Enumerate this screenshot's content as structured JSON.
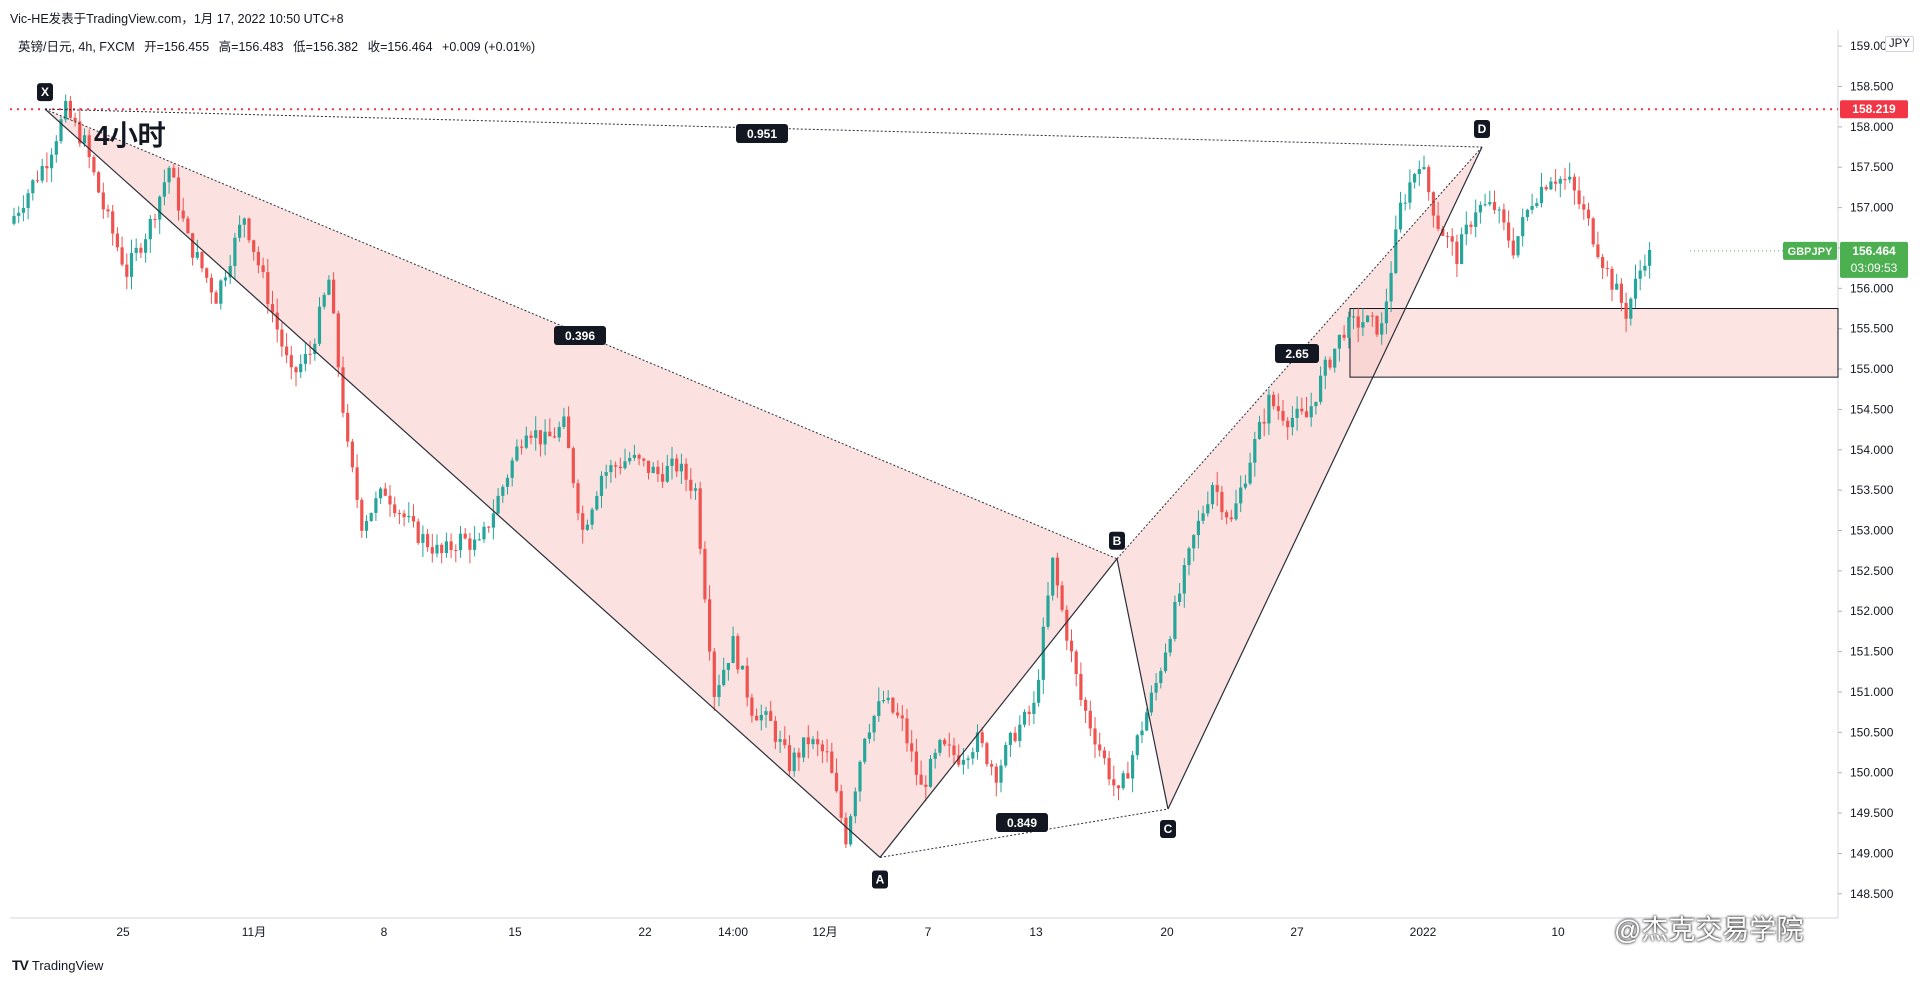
{
  "header": {
    "credit": "Vic-HE发表于TradingView.com，1月 17, 2022 10:50 UTC+8"
  },
  "legend": {
    "symbol": "英镑/日元, 4h, FXCM",
    "open": "开=156.455",
    "high": "高=156.483",
    "low": "低=156.382",
    "close": "收=156.464",
    "change": "+0.009 (+0.01%)"
  },
  "currency_label": "JPY",
  "timeframe_note": "4小时",
  "brand": "TradingView",
  "watermark_text": "@杰克交易学院",
  "colors": {
    "bull": "#26a69a",
    "bear": "#ef5350",
    "pattern_fill": "#f8c9c6",
    "resistance": "#f23645",
    "ticker_badge": "#4caf50"
  },
  "chart_data": {
    "type": "candlestick",
    "symbol": "GBPJPY",
    "ylim": [
      148.2,
      159.2
    ],
    "yticks": [
      "148.500",
      "149.000",
      "149.500",
      "150.000",
      "150.500",
      "151.000",
      "151.500",
      "152.000",
      "152.500",
      "153.000",
      "153.500",
      "154.000",
      "154.500",
      "155.000",
      "155.500",
      "156.000",
      "156.500",
      "157.000",
      "157.500",
      "158.000",
      "158.500",
      "159.000"
    ],
    "xticks": [
      "25",
      "11月",
      "8",
      "15",
      "22",
      "14:00",
      "12月",
      "7",
      "13",
      "20",
      "27",
      "2022",
      "10"
    ],
    "resistance_level": "158.219",
    "last_price": "156.464",
    "countdown": "03:09:53",
    "harmonic_pattern": {
      "points": [
        {
          "label": "X",
          "price": 158.22
        },
        {
          "label": "A",
          "price": 148.95
        },
        {
          "label": "B",
          "price": 152.65
        },
        {
          "label": "C",
          "price": 149.55
        },
        {
          "label": "D",
          "price": 157.75
        }
      ],
      "ratios": [
        "0.396",
        "0.849",
        "2.65",
        "0.951"
      ]
    },
    "zone": {
      "low": 154.9,
      "high": 155.75
    },
    "path": [
      [
        0,
        156.8
      ],
      [
        8,
        157.6
      ],
      [
        12,
        158.2
      ],
      [
        16,
        157.8
      ],
      [
        20,
        157.0
      ],
      [
        25,
        156.2
      ],
      [
        30,
        156.8
      ],
      [
        34,
        157.5
      ],
      [
        38,
        156.6
      ],
      [
        44,
        155.9
      ],
      [
        50,
        156.9
      ],
      [
        56,
        155.7
      ],
      [
        60,
        154.9
      ],
      [
        64,
        155.2
      ],
      [
        68,
        156.1
      ],
      [
        72,
        154.0
      ],
      [
        75,
        153.1
      ],
      [
        80,
        153.5
      ],
      [
        86,
        153.0
      ],
      [
        92,
        152.7
      ],
      [
        96,
        152.9
      ],
      [
        100,
        152.8
      ],
      [
        106,
        153.7
      ],
      [
        110,
        154.3
      ],
      [
        114,
        154.1
      ],
      [
        118,
        154.3
      ],
      [
        122,
        153.0
      ],
      [
        126,
        153.7
      ],
      [
        132,
        153.9
      ],
      [
        138,
        153.7
      ],
      [
        142,
        153.8
      ],
      [
        146,
        153.5
      ],
      [
        150,
        151.0
      ],
      [
        154,
        151.6
      ],
      [
        158,
        150.8
      ],
      [
        162,
        150.6
      ],
      [
        166,
        150.1
      ],
      [
        170,
        150.4
      ],
      [
        174,
        150.2
      ],
      [
        178,
        149.2
      ],
      [
        182,
        150.5
      ],
      [
        186,
        150.9
      ],
      [
        190,
        150.6
      ],
      [
        194,
        149.8
      ],
      [
        198,
        150.3
      ],
      [
        202,
        150.2
      ],
      [
        206,
        150.4
      ],
      [
        210,
        150.0
      ],
      [
        214,
        150.5
      ],
      [
        218,
        150.8
      ],
      [
        222,
        152.6
      ],
      [
        224,
        152.0
      ],
      [
        228,
        150.9
      ],
      [
        232,
        150.3
      ],
      [
        236,
        149.7
      ],
      [
        240,
        150.4
      ],
      [
        244,
        151.1
      ],
      [
        248,
        152.0
      ],
      [
        252,
        152.9
      ],
      [
        256,
        153.6
      ],
      [
        260,
        153.1
      ],
      [
        264,
        153.9
      ],
      [
        268,
        154.6
      ],
      [
        272,
        154.4
      ],
      [
        276,
        154.4
      ],
      [
        280,
        155.0
      ],
      [
        284,
        155.5
      ],
      [
        288,
        155.6
      ],
      [
        292,
        155.5
      ],
      [
        296,
        157.0
      ],
      [
        300,
        157.6
      ],
      [
        304,
        156.8
      ],
      [
        308,
        156.4
      ],
      [
        312,
        157.0
      ],
      [
        316,
        157.0
      ],
      [
        320,
        156.5
      ],
      [
        324,
        157.1
      ],
      [
        328,
        157.4
      ],
      [
        332,
        157.3
      ],
      [
        336,
        156.8
      ],
      [
        340,
        156.2
      ],
      [
        344,
        155.7
      ],
      [
        348,
        156.4
      ]
    ]
  }
}
